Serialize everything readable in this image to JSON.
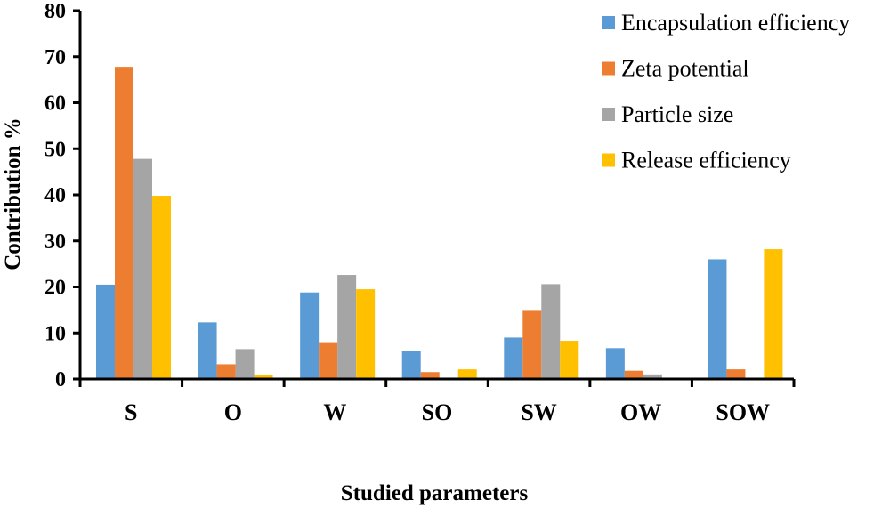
{
  "chart_data": {
    "type": "bar",
    "title": "",
    "xlabel": "Studied parameters",
    "ylabel": "Contribution %",
    "ylim": [
      0,
      80
    ],
    "yticks": [
      0,
      10,
      20,
      30,
      40,
      50,
      60,
      70,
      80
    ],
    "grid": false,
    "legend_position": "top-right",
    "categories": [
      "S",
      "O",
      "W",
      "SO",
      "SW",
      "OW",
      "SOW"
    ],
    "series": [
      {
        "name": "Encapsulation efficiency",
        "color": "#5B9BD5",
        "values": [
          20.5,
          12.3,
          18.8,
          6.0,
          9.0,
          6.7,
          26.0
        ]
      },
      {
        "name": "Zeta potential",
        "color": "#ED7D31",
        "values": [
          67.8,
          3.2,
          8.0,
          1.5,
          14.8,
          1.8,
          2.1
        ]
      },
      {
        "name": "Particle size",
        "color": "#A5A5A5",
        "values": [
          47.8,
          6.5,
          22.6,
          0.3,
          20.6,
          1.0,
          0.2
        ]
      },
      {
        "name": "Release efficiency",
        "color": "#FFC000",
        "values": [
          39.8,
          0.8,
          19.5,
          2.1,
          8.3,
          0.3,
          28.2
        ]
      }
    ]
  }
}
